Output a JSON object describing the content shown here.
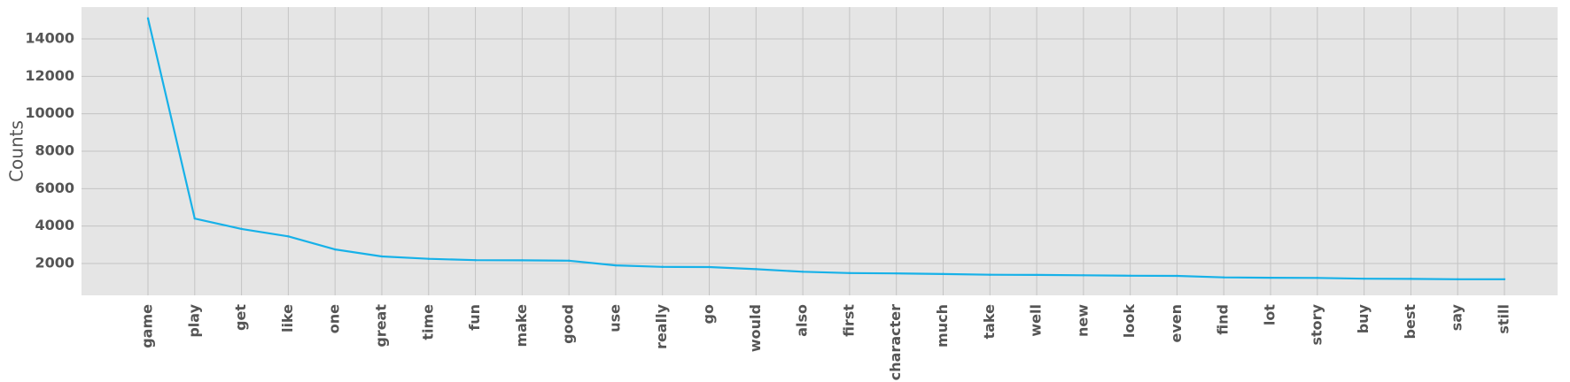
{
  "chart_data": {
    "type": "line",
    "title": "",
    "xlabel": "",
    "ylabel": "Counts",
    "categories": [
      "game",
      "play",
      "get",
      "like",
      "one",
      "great",
      "time",
      "fun",
      "make",
      "good",
      "use",
      "really",
      "go",
      "would",
      "also",
      "first",
      "character",
      "much",
      "take",
      "well",
      "new",
      "look",
      "even",
      "find",
      "lot",
      "story",
      "buy",
      "best",
      "say",
      "still"
    ],
    "values": [
      15100,
      4400,
      3850,
      3450,
      2750,
      2380,
      2250,
      2180,
      2170,
      2150,
      1900,
      1820,
      1810,
      1700,
      1560,
      1490,
      1470,
      1440,
      1400,
      1390,
      1370,
      1350,
      1340,
      1260,
      1240,
      1230,
      1190,
      1180,
      1160,
      1160
    ],
    "ylim": [
      300,
      15700
    ],
    "yticks": [
      2000,
      4000,
      6000,
      8000,
      10000,
      12000,
      14000
    ],
    "ytick_labels": [
      "2000",
      "4000",
      "6000",
      "8000",
      "10000",
      "12000",
      "14000"
    ],
    "grid": true,
    "colors": {
      "line": "#17b1e8",
      "plot_background": "#e5e5e5",
      "grid": "#c4c4c4",
      "text": "#555555"
    }
  }
}
